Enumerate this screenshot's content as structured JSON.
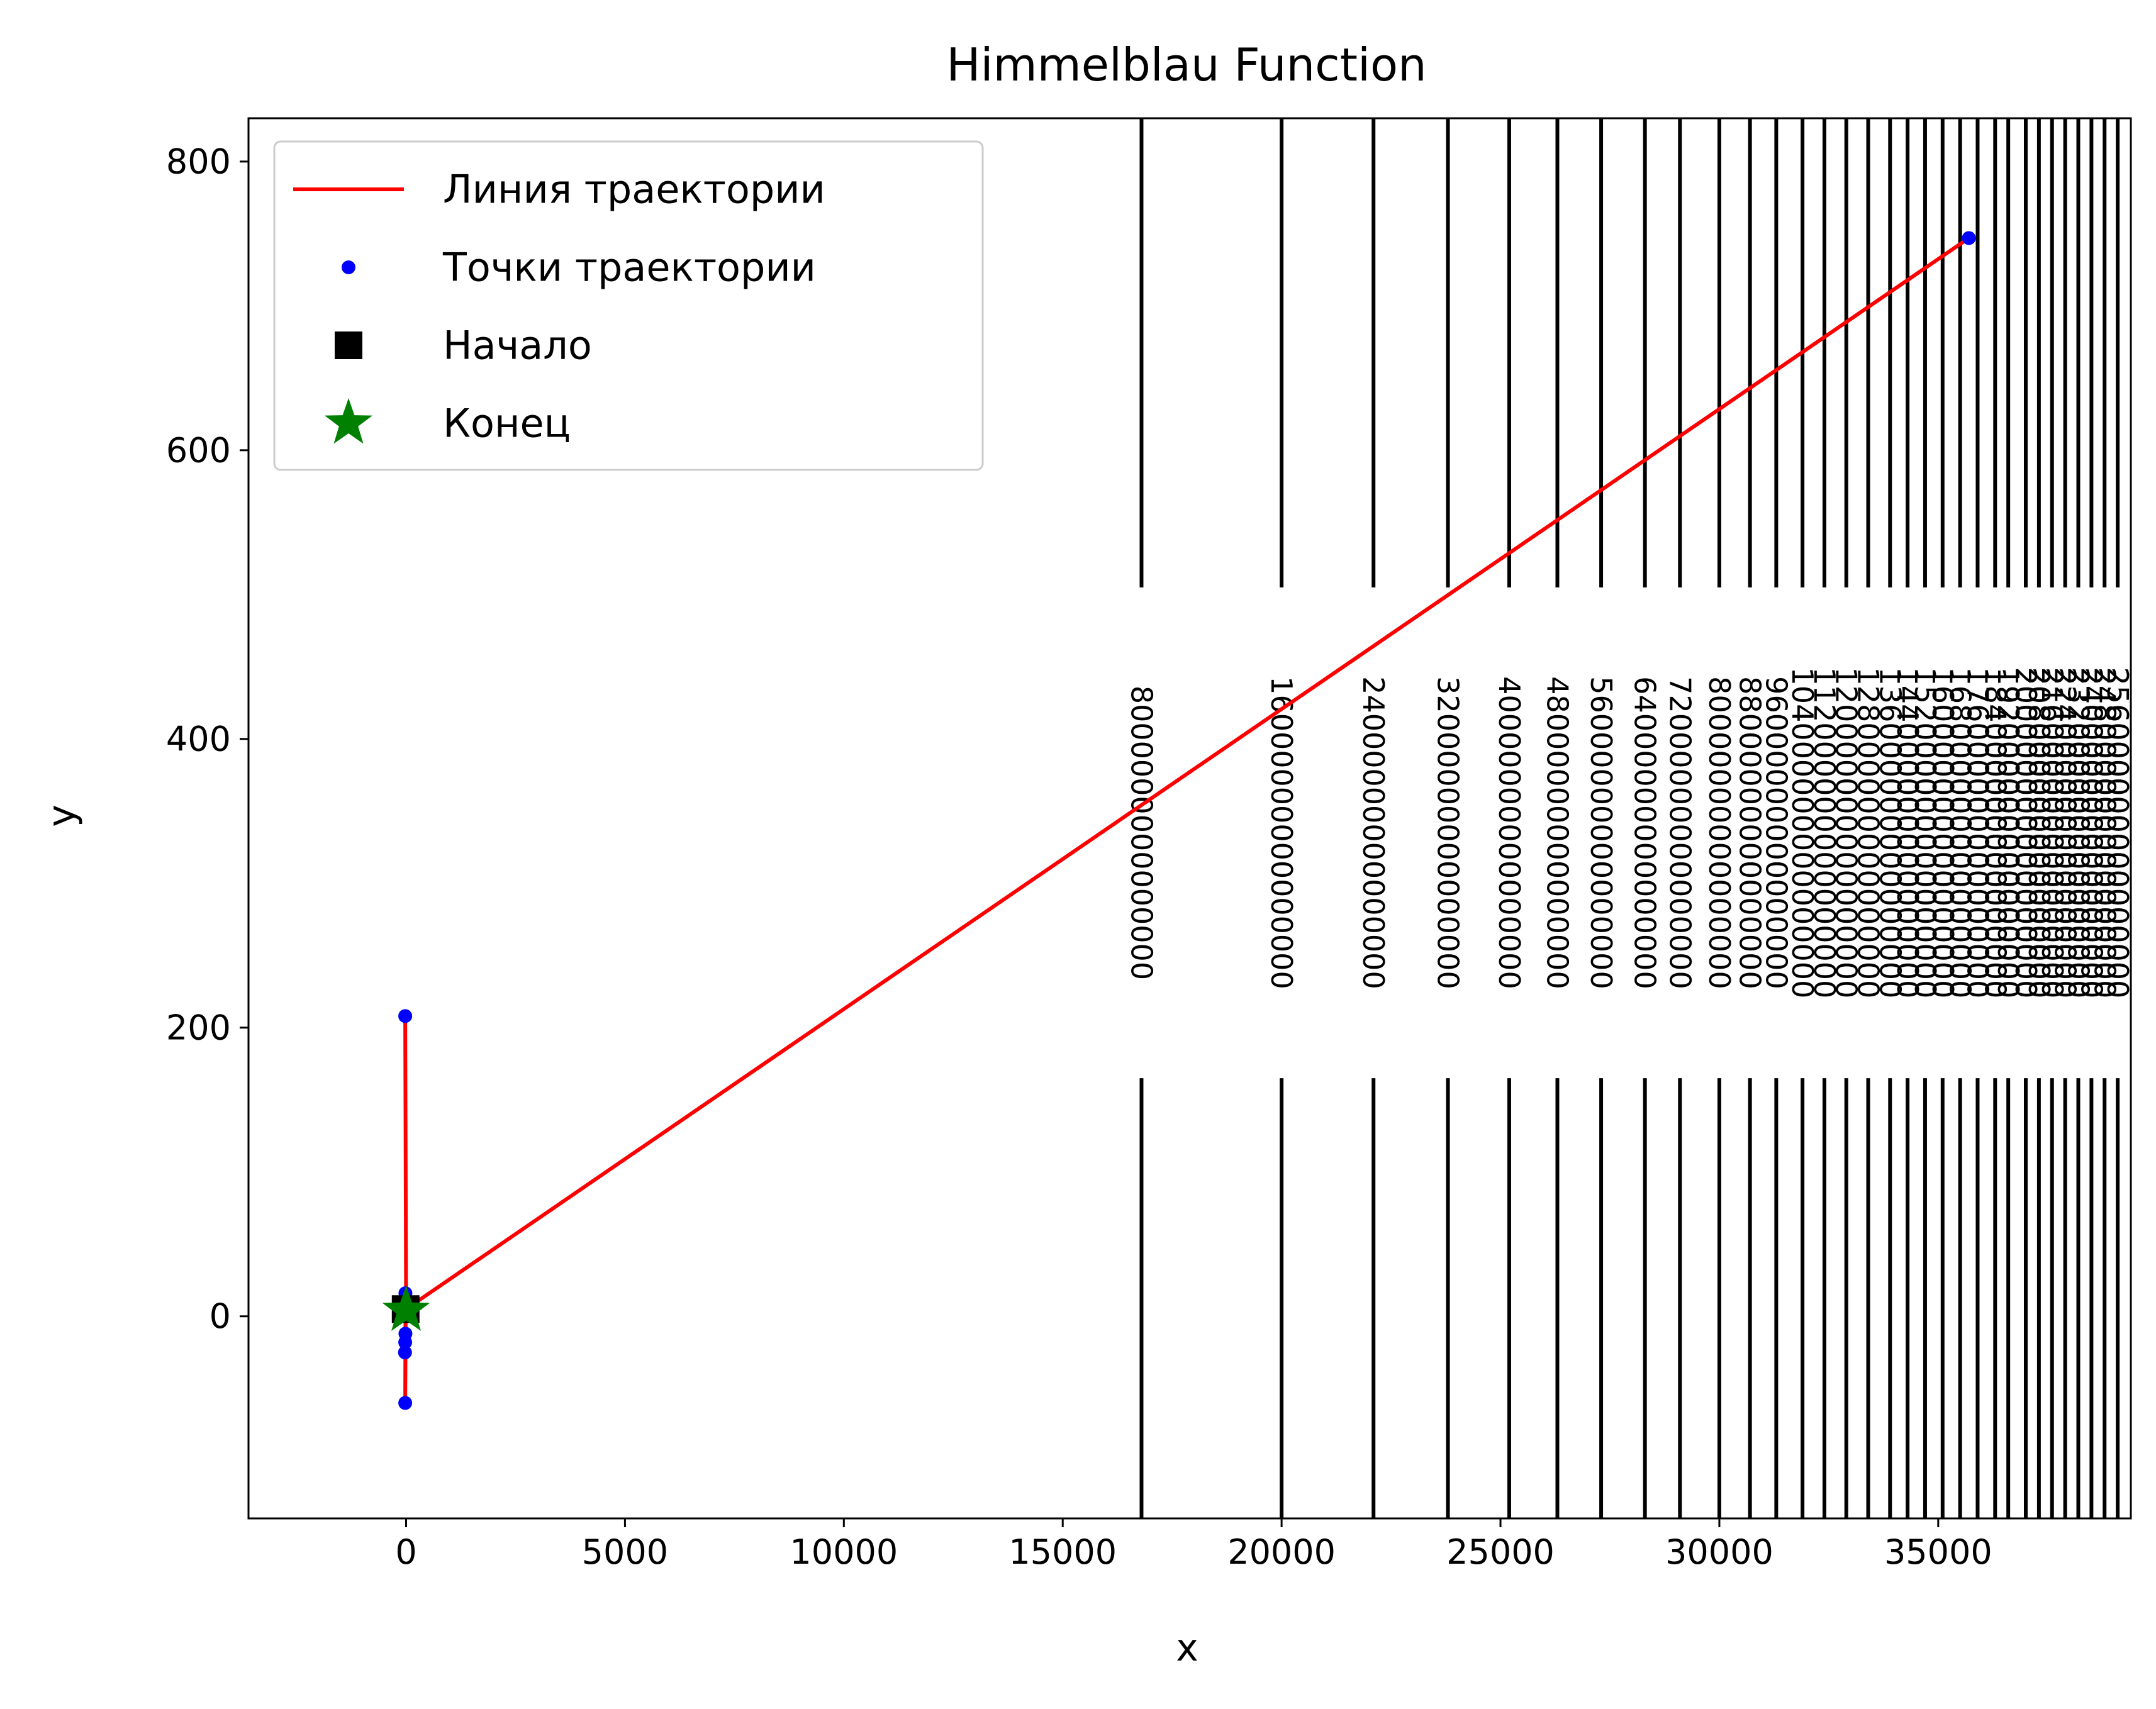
{
  "chart_data": {
    "type": "line",
    "title": "Himmelblau Function",
    "xlabel": "x",
    "ylabel": "y",
    "xlim": [
      -3600,
      39400
    ],
    "ylim": [
      -140,
      830
    ],
    "xticks": [
      0,
      5000,
      10000,
      15000,
      20000,
      25000,
      30000,
      35000
    ],
    "xtick_labels": [
      "0",
      "5000",
      "10000",
      "15000",
      "20000",
      "25000",
      "30000",
      "35000"
    ],
    "yticks": [
      0,
      200,
      400,
      600,
      800
    ],
    "ytick_labels": [
      "0",
      "200",
      "400",
      "600",
      "800"
    ],
    "grid": false,
    "legend_position": "upper left",
    "series": [
      {
        "name": "Линия траектории",
        "kind": "line",
        "color": "#ff0000",
        "points": [
          [
            -20,
            208
          ],
          [
            0,
            5
          ],
          [
            35700,
            747
          ],
          [
            0,
            5
          ],
          [
            -10,
            12
          ],
          [
            -15,
            -10
          ],
          [
            -20,
            -60
          ],
          [
            -10,
            -5
          ],
          [
            0,
            3
          ]
        ]
      },
      {
        "name": "Точки траектории",
        "kind": "scatter",
        "color": "#0000ff",
        "points": [
          [
            35700,
            747
          ],
          [
            -20,
            208
          ],
          [
            -15,
            16
          ],
          [
            -10,
            10
          ],
          [
            -15,
            -12
          ],
          [
            -20,
            -18
          ],
          [
            -25,
            -25
          ],
          [
            -20,
            -60
          ],
          [
            -5,
            2
          ],
          [
            0,
            4
          ]
        ]
      },
      {
        "name": "Начало",
        "kind": "marker",
        "marker": "square",
        "color": "#000000",
        "points": [
          [
            -10,
            5
          ]
        ]
      },
      {
        "name": "Конец",
        "kind": "marker",
        "marker": "star",
        "color": "#008000",
        "points": [
          [
            0,
            4
          ]
        ]
      }
    ],
    "contours": {
      "color": "#000000",
      "x_positions": [
        16800,
        20000,
        22100,
        23800,
        25200,
        26300,
        27300,
        28300,
        29100,
        30000,
        30700,
        31300,
        31900,
        32400,
        32900,
        33400,
        33900,
        34300,
        34700,
        35100,
        35500,
        35900,
        36300,
        36600,
        37000,
        37300,
        37600,
        37900,
        38200,
        38500,
        38800,
        39100
      ],
      "labels": [
        "8000000000000000",
        "16000000000000000",
        "24000000000000000",
        "32000000000000000",
        "40000000000000000",
        "48000000000000000",
        "56000000000000000",
        "64000000000000000",
        "72000000000000000",
        "80000000000000000",
        "88000000000000000",
        "96000000000000000",
        "104000000000000000",
        "112000000000000000",
        "120000000000000000",
        "128000000000000000",
        "136000000000000000",
        "144000000000000000",
        "152000000000000000",
        "160000000000000000",
        "168000000000000000",
        "176000000000000000",
        "184000000000000000",
        "192000000000000000",
        "200000000000000000",
        "208000000000000000",
        "216000000000000000",
        "224000000000000000",
        "232000000000000000",
        "240000000000000000",
        "248000000000000000",
        "256000000000000000"
      ]
    }
  }
}
